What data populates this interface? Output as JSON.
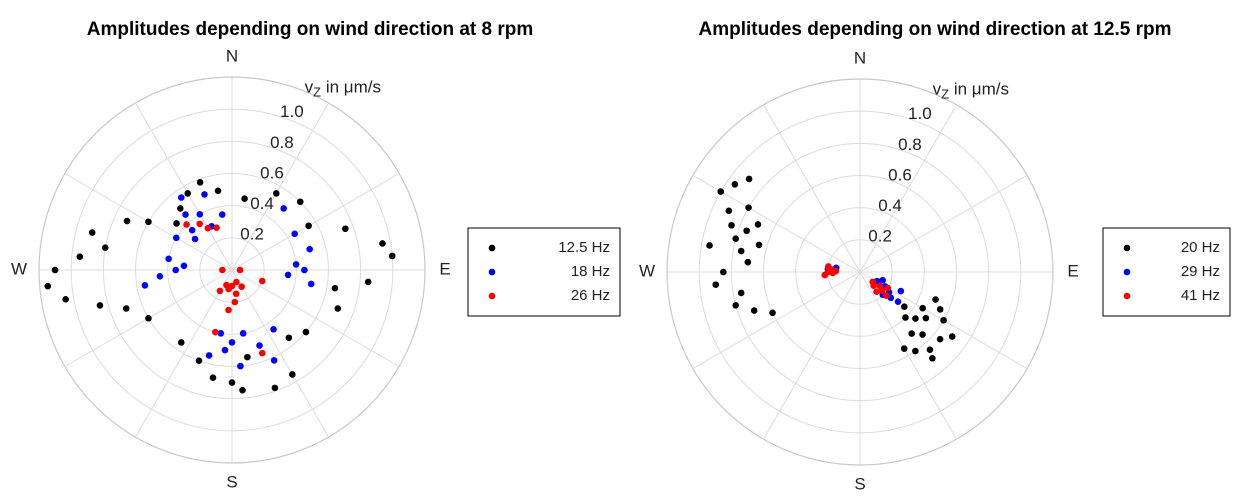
{
  "chart_data": [
    {
      "type": "polar-scatter",
      "title": "Amplitudes depending on wind direction at 8 rpm",
      "rlabel": [
        "v",
        "Z",
        " in μm/s"
      ],
      "rlim": [
        0,
        1.2
      ],
      "rticks": [
        0.2,
        0.4,
        0.6,
        0.8,
        {
          "value": 1,
          "label": "1.0"
        }
      ],
      "thetaticks": [
        {
          "value": 0,
          "label": "N"
        },
        {
          "value": 90,
          "label": "E"
        },
        {
          "value": 180,
          "label": "S"
        },
        {
          "value": 270,
          "label": "W"
        }
      ],
      "thetagrid": [
        0,
        30,
        60,
        90,
        120,
        150,
        180,
        210,
        240,
        270,
        300,
        330
      ],
      "legend_location": "east-outside",
      "series": [
        {
          "name": "12.5 Hz",
          "color": "#000000",
          "theta": [
            320,
            330,
            310,
            340,
            300,
            295,
            350,
            10,
            30,
            45,
            60,
            70,
            80,
            85,
            95,
            100,
            110,
            270,
            265,
            275,
            260,
            280,
            285,
            255,
            250,
            180,
            175,
            190,
            160,
            150,
            200,
            170,
            140,
            130,
            215,
            240
          ],
          "r": [
            0.5,
            0.55,
            0.45,
            0.58,
            0.6,
            0.72,
            0.5,
            0.45,
            0.55,
            0.6,
            0.55,
            0.75,
            0.95,
            1.0,
            0.85,
            0.65,
            0.7,
            1.1,
            1.15,
            0.95,
            1.05,
            0.8,
            0.9,
            0.85,
            0.7,
            0.7,
            0.75,
            0.68,
            0.78,
            0.75,
            0.6,
            0.55,
            0.55,
            0.6,
            0.55,
            0.6
          ]
        },
        {
          "name": "18 Hz",
          "color": "#0000ff",
          "theta": [
            315,
            320,
            330,
            340,
            310,
            325,
            300,
            350,
            335,
            180,
            185,
            170,
            175,
            190,
            160,
            155,
            195,
            90,
            85,
            95,
            75,
            100,
            270,
            275,
            265,
            260,
            280,
            145,
            60,
            40
          ],
          "r": [
            0.35,
            0.45,
            0.4,
            0.5,
            0.3,
            0.55,
            0.4,
            0.35,
            0.3,
            0.45,
            0.5,
            0.4,
            0.6,
            0.4,
            0.5,
            0.62,
            0.55,
            0.45,
            0.4,
            0.35,
            0.5,
            0.5,
            0.35,
            0.3,
            0.45,
            0.55,
            0.4,
            0.45,
            0.45,
            0.5
          ]
        },
        {
          "name": "26 Hz",
          "color": "#ff0000",
          "theta": [
            180,
            170,
            190,
            160,
            200,
            175,
            185,
            150,
            210,
            90,
            270,
            330,
            325,
            340,
            315,
            160,
            195,
            110
          ],
          "r": [
            0.1,
            0.15,
            0.12,
            0.08,
            0.1,
            0.2,
            0.25,
            0.12,
            0.15,
            0.05,
            0.06,
            0.3,
            0.35,
            0.28,
            0.4,
            0.55,
            0.4,
            0.2
          ]
        }
      ]
    },
    {
      "type": "polar-scatter",
      "title": "Amplitudes depending on wind direction at 12.5 rpm",
      "rlabel": [
        "v",
        "Z",
        " in μm/s"
      ],
      "rlim": [
        0,
        1.2
      ],
      "rticks": [
        0.2,
        0.4,
        0.6,
        0.8,
        {
          "value": 1,
          "label": "1.0"
        }
      ],
      "thetaticks": [
        {
          "value": 0,
          "label": "N"
        },
        {
          "value": 90,
          "label": "E"
        },
        {
          "value": 180,
          "label": "S"
        },
        {
          "value": 270,
          "label": "W"
        }
      ],
      "thetagrid": [
        0,
        30,
        60,
        90,
        120,
        150,
        180,
        210,
        240,
        270,
        300,
        330
      ],
      "legend_location": "east-outside",
      "series": [
        {
          "name": "20 Hz",
          "color": "#000000",
          "theta": [
            280,
            285,
            290,
            295,
            300,
            305,
            275,
            270,
            265,
            260,
            255,
            250,
            285,
            290,
            300,
            280,
            295,
            245,
            310,
            130,
            125,
            135,
            120,
            140,
            130,
            115,
            145,
            135,
            125,
            150,
            140,
            120,
            110,
            128,
            138
          ],
          "r": [
            0.75,
            0.8,
            0.85,
            0.9,
            1.0,
            0.95,
            0.7,
            0.85,
            0.9,
            0.75,
            0.8,
            0.7,
            0.65,
            0.75,
            0.8,
            0.95,
            0.7,
            0.6,
            0.9,
            0.45,
            0.5,
            0.55,
            0.6,
            0.5,
            0.65,
            0.55,
            0.6,
            0.4,
            0.7,
            0.55,
            0.7,
            0.45,
            0.5,
            0.35,
            0.65
          ]
        },
        {
          "name": "29 Hz",
          "color": "#0000ff",
          "theta": [
            120,
            125,
            130,
            115,
            135,
            110,
            275,
            280,
            128,
            118
          ],
          "r": [
            0.18,
            0.22,
            0.25,
            0.28,
            0.2,
            0.15,
            0.2,
            0.15,
            0.3,
            0.12
          ]
        },
        {
          "name": "41 Hz",
          "color": "#ff0000",
          "theta": [
            125,
            130,
            135,
            120,
            140,
            128,
            132,
            270,
            275,
            265,
            272,
            280,
            268
          ],
          "r": [
            0.15,
            0.18,
            0.12,
            0.2,
            0.16,
            0.1,
            0.22,
            0.2,
            0.18,
            0.22,
            0.15,
            0.2,
            0.17
          ]
        }
      ]
    }
  ]
}
